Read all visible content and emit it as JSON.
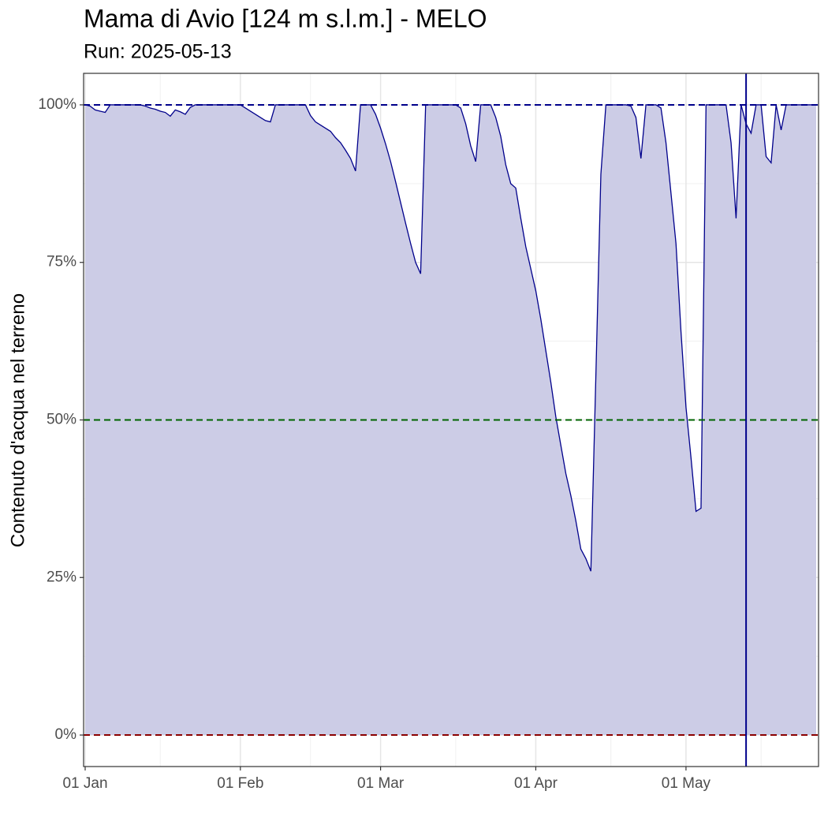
{
  "chart_data": {
    "type": "area",
    "title": "Mama di Avio [124 m s.l.m.] - MELO",
    "subtitle": "Run: 2025-05-13",
    "ylabel": "Contenuto d'acqua nel terreno",
    "x": [
      "01 Jan",
      "02 Jan",
      "03 Jan",
      "04 Jan",
      "05 Jan",
      "06 Jan",
      "07 Jan",
      "08 Jan",
      "09 Jan",
      "10 Jan",
      "11 Jan",
      "12 Jan",
      "13 Jan",
      "14 Jan",
      "15 Jan",
      "16 Jan",
      "17 Jan",
      "18 Jan",
      "19 Jan",
      "20 Jan",
      "21 Jan",
      "22 Jan",
      "23 Jan",
      "24 Jan",
      "25 Jan",
      "26 Jan",
      "27 Jan",
      "28 Jan",
      "29 Jan",
      "30 Jan",
      "31 Jan",
      "01 Feb",
      "02 Feb",
      "03 Feb",
      "04 Feb",
      "05 Feb",
      "06 Feb",
      "07 Feb",
      "08 Feb",
      "09 Feb",
      "10 Feb",
      "11 Feb",
      "12 Feb",
      "13 Feb",
      "14 Feb",
      "15 Feb",
      "16 Feb",
      "17 Feb",
      "18 Feb",
      "19 Feb",
      "20 Feb",
      "21 Feb",
      "22 Feb",
      "23 Feb",
      "24 Feb",
      "25 Feb",
      "26 Feb",
      "27 Feb",
      "28 Feb",
      "01 Mar",
      "02 Mar",
      "03 Mar",
      "04 Mar",
      "05 Mar",
      "06 Mar",
      "07 Mar",
      "08 Mar",
      "09 Mar",
      "10 Mar",
      "11 Mar",
      "12 Mar",
      "13 Mar",
      "14 Mar",
      "15 Mar",
      "16 Mar",
      "17 Mar",
      "18 Mar",
      "19 Mar",
      "20 Mar",
      "21 Mar",
      "22 Mar",
      "23 Mar",
      "24 Mar",
      "25 Mar",
      "26 Mar",
      "27 Mar",
      "28 Mar",
      "29 Mar",
      "30 Mar",
      "31 Mar",
      "01 Apr",
      "02 Apr",
      "03 Apr",
      "04 Apr",
      "05 Apr",
      "06 Apr",
      "07 Apr",
      "08 Apr",
      "09 Apr",
      "10 Apr",
      "11 Apr",
      "12 Apr",
      "13 Apr",
      "14 Apr",
      "15 Apr",
      "16 Apr",
      "17 Apr",
      "18 Apr",
      "19 Apr",
      "20 Apr",
      "21 Apr",
      "22 Apr",
      "23 Apr",
      "24 Apr",
      "25 Apr",
      "26 Apr",
      "27 Apr",
      "28 Apr",
      "29 Apr",
      "30 Apr",
      "01 May",
      "02 May",
      "03 May",
      "04 May",
      "05 May",
      "06 May",
      "07 May",
      "08 May",
      "09 May",
      "10 May",
      "11 May",
      "12 May",
      "13 May",
      "14 May",
      "15 May",
      "16 May",
      "17 May",
      "18 May",
      "19 May",
      "20 May",
      "21 May",
      "22 May",
      "23 May",
      "24 May",
      "25 May",
      "26 May",
      "27 May"
    ],
    "values": [
      100,
      99.8,
      99.2,
      99,
      98.8,
      100,
      100,
      100,
      100,
      100,
      100,
      100,
      99.8,
      99.5,
      99.3,
      99,
      98.8,
      98.2,
      99.2,
      98.9,
      98.5,
      99.6,
      100,
      100,
      100,
      100,
      100,
      100,
      100,
      100,
      100,
      100,
      99.5,
      99,
      98.5,
      98,
      97.5,
      97.3,
      100,
      100,
      100,
      100,
      100,
      100,
      100,
      98.3,
      97.3,
      96.8,
      96.3,
      95.8,
      94.8,
      94,
      92.8,
      91.5,
      89.5,
      100,
      100,
      100,
      98.5,
      96.3,
      93.8,
      91,
      87.8,
      84.5,
      81.2,
      78,
      75,
      73.2,
      100,
      100,
      100,
      100,
      100,
      100,
      100,
      99.5,
      97,
      93.5,
      91,
      100,
      100,
      100,
      98,
      95,
      90.5,
      87.5,
      86.8,
      82,
      77.5,
      74,
      70.5,
      66,
      61,
      56,
      50.5,
      46,
      41.5,
      38,
      34,
      29.5,
      28,
      26,
      57,
      89,
      100,
      100,
      100,
      100,
      100,
      99.8,
      98,
      91.5,
      100,
      100,
      100,
      99.5,
      94,
      86,
      78,
      64,
      52,
      44,
      35.5,
      36,
      100,
      100,
      100,
      100,
      100,
      94,
      82,
      100,
      97,
      95.5,
      100,
      100,
      91.8,
      90.8,
      100,
      96,
      100,
      100,
      100,
      100,
      100,
      100,
      100
    ],
    "color": "#00008b",
    "fill": "#cccce6",
    "ylim": [
      -5,
      105
    ],
    "yticks": [
      {
        "value": 0,
        "label": "0%"
      },
      {
        "value": 25,
        "label": "25%"
      },
      {
        "value": 50,
        "label": "50%"
      },
      {
        "value": 75,
        "label": "75%"
      },
      {
        "value": 100,
        "label": "100%"
      }
    ],
    "minor_yticks": [
      12.5,
      37.5,
      62.5,
      87.5
    ],
    "xticks": [
      "01 Jan",
      "01 Feb",
      "01 Mar",
      "01 Apr",
      "01 May"
    ],
    "minor_xticks": [
      "16 Jan",
      "15 Feb",
      "16 Mar",
      "16 Apr",
      "16 May"
    ],
    "hlines": [
      {
        "value": 100,
        "color": "#00008b"
      },
      {
        "value": 50,
        "color": "#006400"
      },
      {
        "value": 0,
        "color": "#8b0000"
      }
    ],
    "vline": "13 May",
    "grid": true
  }
}
